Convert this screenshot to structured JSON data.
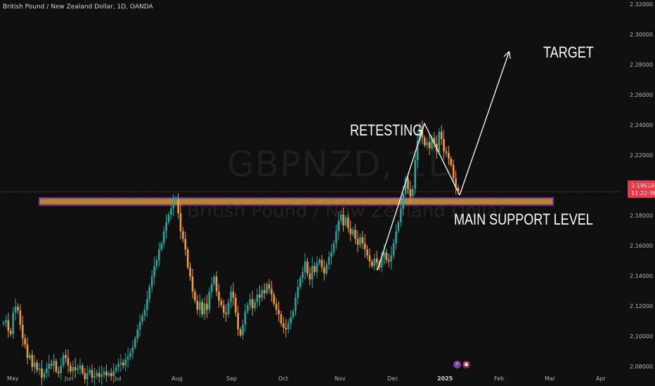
{
  "header": {
    "symbol_text": "British Pound / New Zealand Dollar, 1D, OANDA"
  },
  "watermark": {
    "ticker": "GBPNZD, 1D",
    "description": "British Pound / New Zealand Dollar"
  },
  "price_tag": {
    "value": "2.19618",
    "countdown": "11:22:38",
    "color": "#f23645"
  },
  "annotations": {
    "retesting": "RETESTING",
    "target": "TARGET",
    "support": "MAIN SUPPORT LEVEL"
  },
  "colors": {
    "up": "#26a69a",
    "down": "#ef9a3c",
    "support_fill": "#c9a227",
    "support_border": "#9c27b0",
    "background": "#0f0f0f"
  },
  "chart_data": {
    "type": "candlestick",
    "title": "GBPNZD, 1D",
    "ylim": [
      2.07,
      2.32
    ],
    "yticks": [
      "2.32000",
      "2.30000",
      "2.28000",
      "2.26000",
      "2.24000",
      "2.22000",
      "2.20000",
      "2.18000",
      "2.16000",
      "2.14000",
      "2.12000",
      "2.10000",
      "2.08000"
    ],
    "xticks": [
      "May",
      "Jun",
      "Jul",
      "Aug",
      "Sep",
      "Oct",
      "Nov",
      "Dec",
      "2025",
      "Feb",
      "Mar",
      "Apr"
    ],
    "last_price": 2.19618,
    "support_zone": [
      2.1875,
      2.192
    ],
    "closes": [
      2.1095,
      2.111,
      2.104,
      2.102,
      2.116,
      2.12,
      2.1175,
      2.108,
      2.099,
      2.095,
      2.086,
      2.088,
      2.08,
      2.083,
      2.078,
      2.079,
      2.073,
      2.076,
      2.079,
      2.082,
      2.081,
      2.084,
      2.077,
      2.076,
      2.081,
      2.088,
      2.086,
      2.081,
      2.077,
      2.08,
      2.078,
      2.079,
      2.081,
      2.076,
      2.072,
      2.076,
      2.078,
      2.073,
      2.074,
      2.076,
      2.0735,
      2.075,
      2.077,
      2.0745,
      2.076,
      2.074,
      2.0775,
      2.08,
      2.082,
      2.083,
      2.081,
      2.085,
      2.087,
      2.0895,
      2.093,
      2.099,
      2.105,
      2.11,
      2.114,
      2.118,
      2.125,
      2.133,
      2.14,
      2.147,
      2.151,
      2.158,
      2.162,
      2.17,
      2.176,
      2.181,
      2.185,
      2.189,
      2.191,
      2.182,
      2.17,
      2.165,
      2.158,
      2.146,
      2.14,
      2.13,
      2.124,
      2.118,
      2.123,
      2.115,
      2.122,
      2.118,
      2.13,
      2.135,
      2.14,
      2.13,
      2.124,
      2.121,
      2.116,
      2.115,
      2.123,
      2.13,
      2.126,
      2.116,
      2.105,
      2.101,
      2.108,
      2.117,
      2.121,
      2.125,
      2.119,
      2.123,
      2.128,
      2.126,
      2.131,
      2.129,
      2.135,
      2.132,
      2.128,
      2.122,
      2.118,
      2.115,
      2.109,
      2.106,
      2.105,
      2.109,
      2.113,
      2.117,
      2.126,
      2.133,
      2.139,
      2.143,
      2.15,
      2.142,
      2.138,
      2.147,
      2.143,
      2.149,
      2.151,
      2.146,
      2.142,
      2.148,
      2.153,
      2.156,
      2.162,
      2.17,
      2.177,
      2.181,
      2.174,
      2.179,
      2.172,
      2.168,
      2.171,
      2.165,
      2.161,
      2.166,
      2.162,
      2.158,
      2.154,
      2.15,
      2.147,
      2.152,
      2.149,
      2.146,
      2.153,
      2.156,
      2.151,
      2.15,
      2.154,
      2.162,
      2.17,
      2.176,
      2.185,
      2.195,
      2.205,
      2.198,
      2.193,
      2.198,
      2.217,
      2.23,
      2.239,
      2.232,
      2.227,
      2.229,
      2.225,
      2.232,
      2.228,
      2.223,
      2.236,
      2.231,
      2.223,
      2.222,
      2.218,
      2.214,
      2.205,
      2.199,
      2.1962
    ]
  }
}
